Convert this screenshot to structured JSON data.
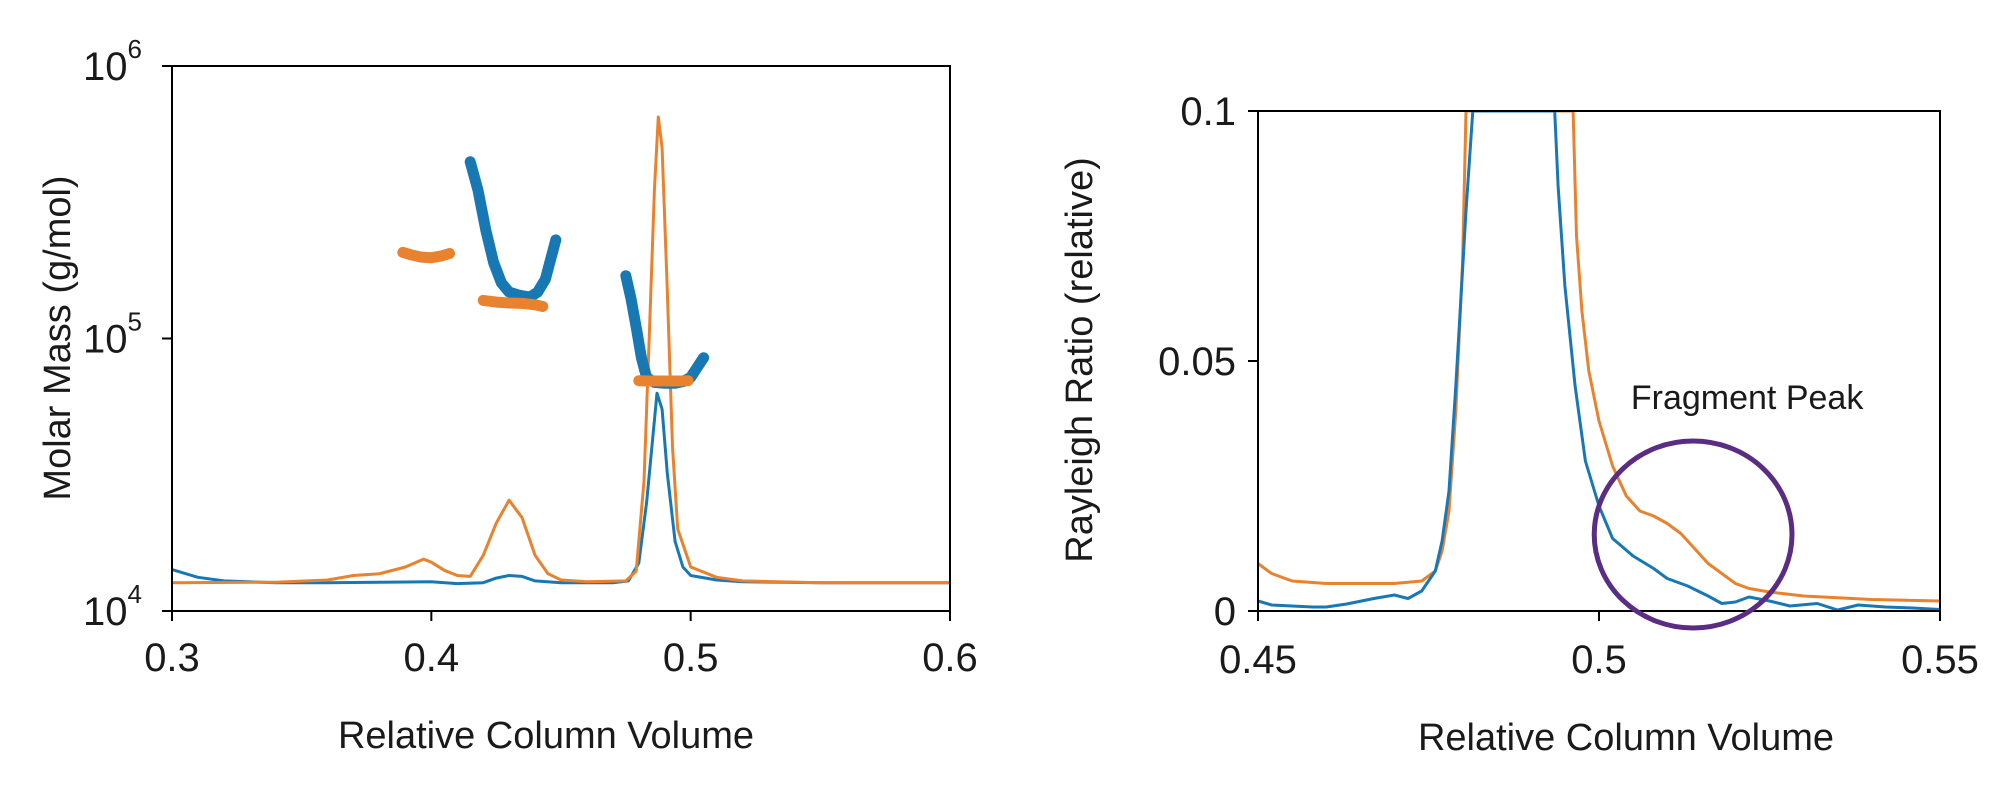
{
  "colors": {
    "blue": "#1878b4",
    "orange": "#e9822e",
    "annotation": "#5b2c83",
    "axis": "#000000"
  },
  "chart_data": [
    {
      "type": "line",
      "xlabel": "Relative Column Volume",
      "ylabel": "Molar Mass (g/mol)",
      "xlim": [
        0.3,
        0.6
      ],
      "ylim": [
        10000,
        1000000
      ],
      "yscale": "log",
      "x_ticks": [
        "0.3",
        "0.4",
        "0.5",
        "0.6"
      ],
      "y_ticks": [
        {
          "base": "10",
          "exp": "4"
        },
        {
          "base": "10",
          "exp": "5"
        },
        {
          "base": "10",
          "exp": "6"
        }
      ],
      "grid": false,
      "legend": "none",
      "series": [
        {
          "kind": "trace",
          "color": "blue",
          "points": [
            [
              0.3,
              14200
            ],
            [
              0.31,
              13300
            ],
            [
              0.32,
              12900
            ],
            [
              0.34,
              12700
            ],
            [
              0.36,
              12700
            ],
            [
              0.38,
              12750
            ],
            [
              0.4,
              12800
            ],
            [
              0.41,
              12600
            ],
            [
              0.42,
              12700
            ],
            [
              0.425,
              13200
            ],
            [
              0.43,
              13500
            ],
            [
              0.435,
              13400
            ],
            [
              0.44,
              12900
            ],
            [
              0.45,
              12700
            ],
            [
              0.47,
              12700
            ],
            [
              0.476,
              12900
            ],
            [
              0.48,
              15000
            ],
            [
              0.483,
              25000
            ],
            [
              0.486,
              50000
            ],
            [
              0.487,
              63000
            ],
            [
              0.489,
              55000
            ],
            [
              0.491,
              32000
            ],
            [
              0.494,
              18000
            ],
            [
              0.497,
              14500
            ],
            [
              0.5,
              13500
            ],
            [
              0.51,
              13000
            ],
            [
              0.52,
              12800
            ],
            [
              0.55,
              12700
            ],
            [
              0.6,
              12700
            ]
          ]
        },
        {
          "kind": "trace",
          "color": "orange",
          "points": [
            [
              0.3,
              12700
            ],
            [
              0.34,
              12750
            ],
            [
              0.36,
              13000
            ],
            [
              0.37,
              13500
            ],
            [
              0.38,
              13700
            ],
            [
              0.39,
              14500
            ],
            [
              0.397,
              15500
            ],
            [
              0.4,
              15100
            ],
            [
              0.405,
              14100
            ],
            [
              0.41,
              13500
            ],
            [
              0.415,
              13400
            ],
            [
              0.42,
              16000
            ],
            [
              0.425,
              21000
            ],
            [
              0.43,
              25500
            ],
            [
              0.435,
              22000
            ],
            [
              0.44,
              16000
            ],
            [
              0.445,
              13700
            ],
            [
              0.45,
              13000
            ],
            [
              0.46,
              12800
            ],
            [
              0.475,
              12900
            ],
            [
              0.479,
              14000
            ],
            [
              0.482,
              30000
            ],
            [
              0.484,
              100000
            ],
            [
              0.486,
              350000
            ],
            [
              0.4875,
              650000
            ],
            [
              0.489,
              500000
            ],
            [
              0.491,
              150000
            ],
            [
              0.493,
              40000
            ],
            [
              0.495,
              20000
            ],
            [
              0.5,
              14500
            ],
            [
              0.51,
              13300
            ],
            [
              0.52,
              12900
            ],
            [
              0.55,
              12700
            ],
            [
              0.6,
              12700
            ]
          ]
        },
        {
          "kind": "molar-mass",
          "color": "orange",
          "points": [
            [
              0.389,
              207000
            ],
            [
              0.392,
              203000
            ],
            [
              0.396,
              199000
            ],
            [
              0.4,
              198000
            ],
            [
              0.404,
              201000
            ],
            [
              0.407,
              205000
            ]
          ]
        },
        {
          "kind": "molar-mass",
          "color": "blue",
          "points": [
            [
              0.415,
              445000
            ],
            [
              0.418,
              350000
            ],
            [
              0.421,
              250000
            ],
            [
              0.424,
              190000
            ],
            [
              0.427,
              160000
            ],
            [
              0.43,
              148000
            ],
            [
              0.434,
              144000
            ],
            [
              0.438,
              142000
            ],
            [
              0.441,
              148000
            ],
            [
              0.444,
              165000
            ],
            [
              0.446,
              195000
            ],
            [
              0.448,
              230000
            ]
          ]
        },
        {
          "kind": "molar-mass",
          "color": "orange",
          "points": [
            [
              0.42,
              138000
            ],
            [
              0.425,
              136000
            ],
            [
              0.43,
              135000
            ],
            [
              0.435,
              134500
            ],
            [
              0.44,
              133000
            ],
            [
              0.443,
              131000
            ]
          ]
        },
        {
          "kind": "molar-mass",
          "color": "blue",
          "points": [
            [
              0.475,
              170000
            ],
            [
              0.477,
              140000
            ],
            [
              0.479,
              110000
            ],
            [
              0.481,
              85000
            ],
            [
              0.483,
              72000
            ],
            [
              0.486,
              69000
            ],
            [
              0.49,
              68500
            ],
            [
              0.494,
              68500
            ],
            [
              0.497,
              69500
            ],
            [
              0.5,
              72000
            ],
            [
              0.502,
              77000
            ],
            [
              0.505,
              85000
            ]
          ]
        },
        {
          "kind": "molar-mass",
          "color": "orange",
          "points": [
            [
              0.48,
              70000
            ],
            [
              0.484,
              69800
            ],
            [
              0.488,
              69800
            ],
            [
              0.492,
              69800
            ],
            [
              0.496,
              69800
            ],
            [
              0.499,
              70000
            ]
          ]
        }
      ]
    },
    {
      "type": "line",
      "xlabel": "Relative Column Volume",
      "ylabel": "Rayleigh Ratio (relative)",
      "xlim": [
        0.45,
        0.55
      ],
      "ylim": [
        0,
        0.1
      ],
      "x_ticks": [
        "0.45",
        "0.5",
        "0.55"
      ],
      "y_ticks": [
        "0",
        "0.05",
        "0.1"
      ],
      "grid": false,
      "legend": "none",
      "annotations": [
        {
          "type": "circle",
          "label": "Fragment Peak",
          "center": [
            0.5138,
            0.0153
          ],
          "radius_x": 0.0145,
          "radius_y": 0.0187,
          "color": "annotation"
        }
      ],
      "series": [
        {
          "kind": "trace",
          "color": "orange",
          "points": [
            [
              0.45,
              0.0095
            ],
            [
              0.452,
              0.0075
            ],
            [
              0.455,
              0.006
            ],
            [
              0.46,
              0.0055
            ],
            [
              0.465,
              0.0055
            ],
            [
              0.47,
              0.0055
            ],
            [
              0.474,
              0.006
            ],
            [
              0.476,
              0.008
            ],
            [
              0.477,
              0.012
            ],
            [
              0.478,
              0.02
            ],
            [
              0.479,
              0.04
            ],
            [
              0.48,
              0.07
            ],
            [
              0.4805,
              0.1
            ],
            [
              0.4962,
              0.1
            ],
            [
              0.4967,
              0.075
            ],
            [
              0.4975,
              0.06
            ],
            [
              0.4985,
              0.048
            ],
            [
              0.5,
              0.038
            ],
            [
              0.502,
              0.029
            ],
            [
              0.504,
              0.023
            ],
            [
              0.506,
              0.02
            ],
            [
              0.508,
              0.019
            ],
            [
              0.51,
              0.0175
            ],
            [
              0.512,
              0.0155
            ],
            [
              0.514,
              0.0125
            ],
            [
              0.516,
              0.0095
            ],
            [
              0.518,
              0.0075
            ],
            [
              0.52,
              0.0055
            ],
            [
              0.522,
              0.0045
            ],
            [
              0.525,
              0.0038
            ],
            [
              0.53,
              0.003
            ],
            [
              0.54,
              0.0023
            ],
            [
              0.55,
              0.002
            ]
          ]
        },
        {
          "kind": "trace",
          "color": "blue",
          "points": [
            [
              0.45,
              0.002
            ],
            [
              0.452,
              0.0012
            ],
            [
              0.455,
              0.001
            ],
            [
              0.458,
              0.0008
            ],
            [
              0.46,
              0.0008
            ],
            [
              0.463,
              0.0014
            ],
            [
              0.467,
              0.0025
            ],
            [
              0.47,
              0.0032
            ],
            [
              0.472,
              0.0025
            ],
            [
              0.474,
              0.004
            ],
            [
              0.476,
              0.008
            ],
            [
              0.477,
              0.014
            ],
            [
              0.478,
              0.024
            ],
            [
              0.479,
              0.045
            ],
            [
              0.4805,
              0.08
            ],
            [
              0.4815,
              0.1
            ],
            [
              0.4935,
              0.1
            ],
            [
              0.494,
              0.085
            ],
            [
              0.495,
              0.065
            ],
            [
              0.4965,
              0.045
            ],
            [
              0.498,
              0.03
            ],
            [
              0.5,
              0.021
            ],
            [
              0.502,
              0.0145
            ],
            [
              0.505,
              0.011
            ],
            [
              0.508,
              0.0085
            ],
            [
              0.51,
              0.0065
            ],
            [
              0.513,
              0.005
            ],
            [
              0.516,
              0.003
            ],
            [
              0.518,
              0.0015
            ],
            [
              0.52,
              0.0018
            ],
            [
              0.522,
              0.0028
            ],
            [
              0.525,
              0.002
            ],
            [
              0.528,
              0.001
            ],
            [
              0.532,
              0.0015
            ],
            [
              0.535,
              0.0002
            ],
            [
              0.538,
              0.0012
            ],
            [
              0.542,
              0.0008
            ],
            [
              0.546,
              0.0006
            ],
            [
              0.55,
              0.0003
            ]
          ]
        }
      ]
    }
  ]
}
